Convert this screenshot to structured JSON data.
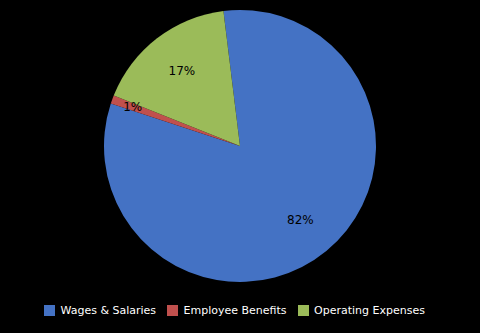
{
  "chart_data": {
    "type": "pie",
    "categories": [
      "Wages & Salaries",
      "Employee Benefits",
      "Operating Expenses"
    ],
    "values": [
      82,
      1,
      17
    ],
    "value_labels": [
      "82%",
      "1%",
      "17%"
    ],
    "colors": [
      "#4472C4",
      "#C0504D",
      "#9BBB59"
    ],
    "data_labels": true,
    "legend": "bottom"
  }
}
